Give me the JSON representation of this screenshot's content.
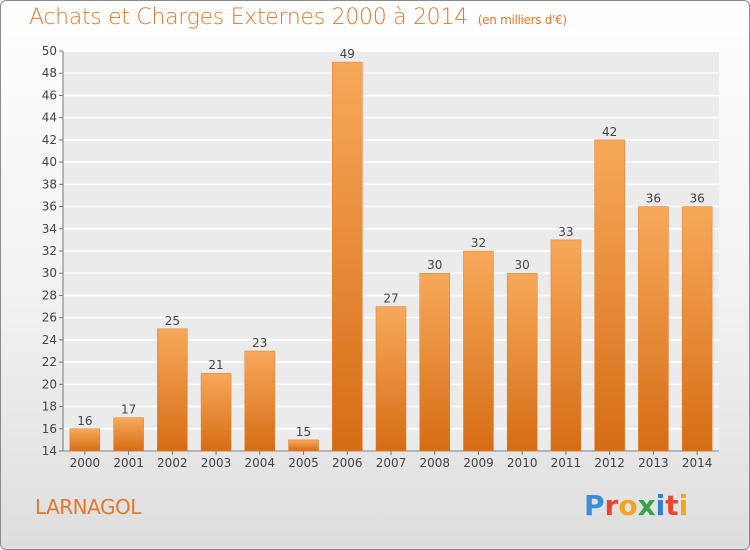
{
  "header": {
    "title": "Achats et Charges Externes 2000 à 2014",
    "unit": "(en milliers d'€)"
  },
  "footer": {
    "commune": "LARNAGOL",
    "brand": "Proxiti"
  },
  "colors": {
    "accent": "#e3782a",
    "bar_light": "#f7a95a",
    "bar_dark": "#d66d15"
  },
  "chart_data": {
    "type": "bar",
    "title": "Achats et Charges Externes 2000 à 2014",
    "subtitle": "(en milliers d'€)",
    "categories": [
      "2000",
      "2001",
      "2002",
      "2003",
      "2004",
      "2005",
      "2006",
      "2007",
      "2008",
      "2009",
      "2010",
      "2011",
      "2012",
      "2013",
      "2014"
    ],
    "values": [
      16,
      17,
      25,
      21,
      23,
      15,
      49,
      27,
      30,
      32,
      30,
      33,
      42,
      36,
      36
    ],
    "ylim": [
      14,
      50
    ],
    "yticks": [
      14,
      16,
      18,
      20,
      22,
      24,
      26,
      28,
      30,
      32,
      34,
      36,
      38,
      40,
      42,
      44,
      46,
      48,
      50
    ],
    "grid": true,
    "legend": "none"
  }
}
